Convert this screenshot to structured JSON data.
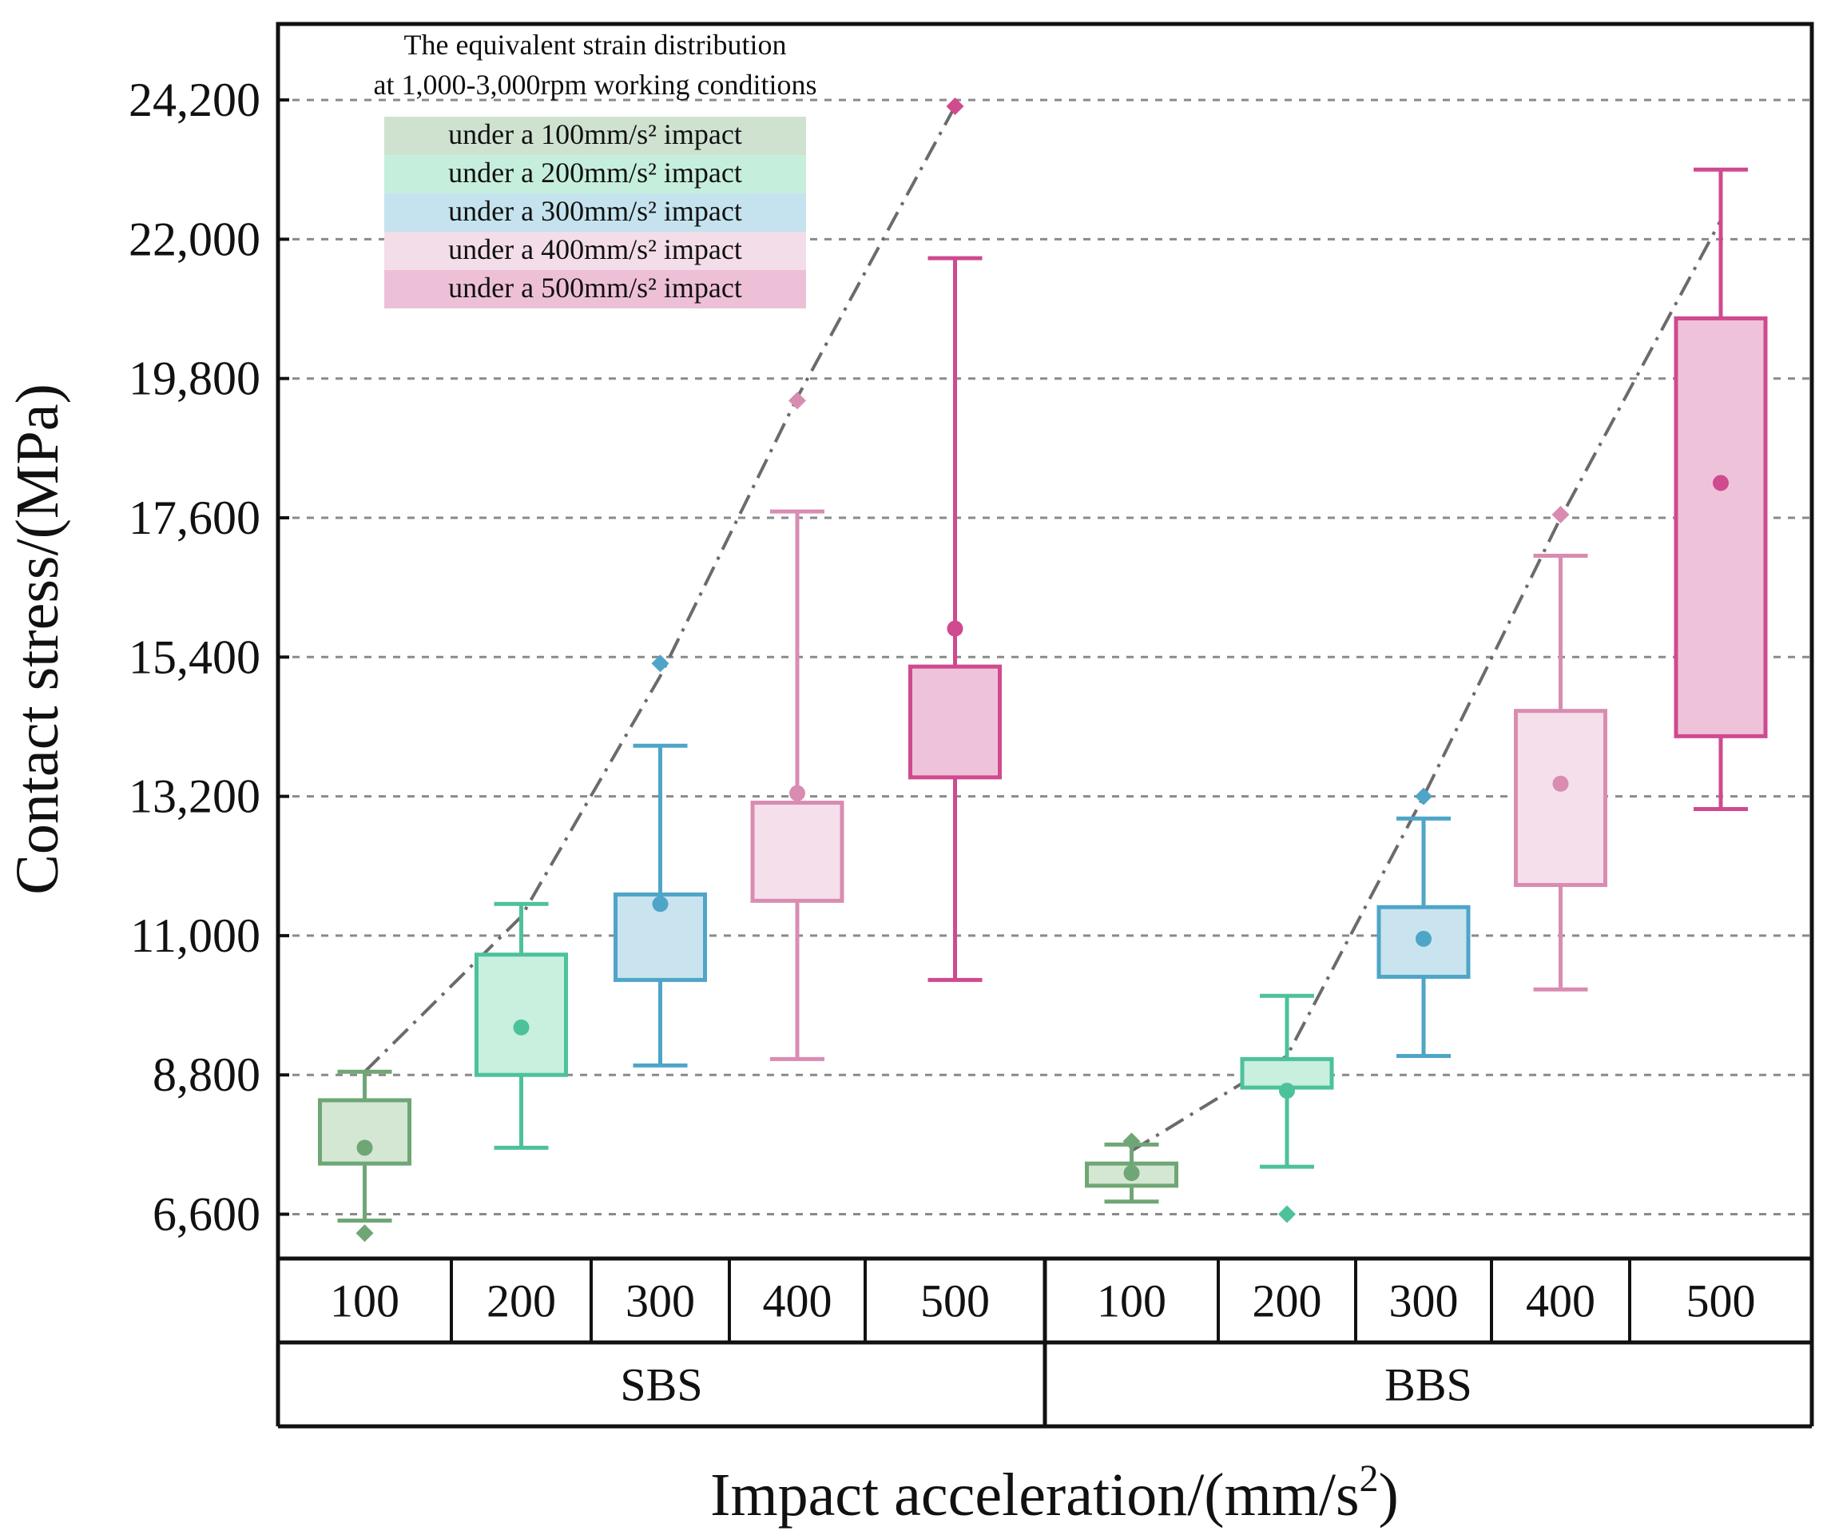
{
  "chart_data": {
    "type": "box",
    "ylabel": "Contact stress/(MPa)",
    "xlabel": "Impact acceleration/(mm/s",
    "xlabel_sup": "2",
    "xlabel_close": ")",
    "ylim": [
      5900,
      25400
    ],
    "yticks": [
      6600,
      8800,
      11000,
      13200,
      15400,
      17600,
      19800,
      22000,
      24200
    ],
    "ytick_labels": [
      "6,600",
      "8,800",
      "11,000",
      "13,200",
      "15,400",
      "17,600",
      "19,800",
      "22,000",
      "24,200"
    ],
    "grid": "horizontal dashed",
    "note_line1": "The equivalent strain distribution",
    "note_line2": "at 1,000-3,000rpm working conditions",
    "legend": [
      {
        "label": "under a 100mm/s² impact",
        "color": "#cfe2d0"
      },
      {
        "label": "under a 200mm/s² impact",
        "color": "#c6eedd"
      },
      {
        "label": "under a 300mm/s² impact",
        "color": "#c5e3ee"
      },
      {
        "label": "under a 400mm/s² impact",
        "color": "#f3dde8"
      },
      {
        "label": "under a 500mm/s² impact",
        "color": "#eec0d8"
      }
    ],
    "colors": {
      "100": {
        "stroke": "#6fa675",
        "fill": "#d3e7d3"
      },
      "200": {
        "stroke": "#4dc29a",
        "fill": "#c9efdf"
      },
      "300": {
        "stroke": "#4ea5c8",
        "fill": "#c9e4ee"
      },
      "400": {
        "stroke": "#d98cb2",
        "fill": "#f4dfea"
      },
      "500": {
        "stroke": "#cf4a8f",
        "fill": "#eec3d9"
      }
    },
    "groups": [
      {
        "name": "SBS",
        "categories": [
          "100",
          "200",
          "300",
          "400",
          "500"
        ],
        "boxes": [
          {
            "label": "100",
            "whisker_low": 6500,
            "q1": 7400,
            "mean": 7650,
            "q3": 8400,
            "whisker_high": 8850,
            "outlier": 6300
          },
          {
            "label": "200",
            "whisker_low": 7650,
            "q1": 8800,
            "mean": 9550,
            "q3": 10700,
            "whisker_high": 11500,
            "outlier": null
          },
          {
            "label": "300",
            "whisker_low": 8950,
            "q1": 10300,
            "mean": 11500,
            "q3": 11650,
            "whisker_high": 14000,
            "outlier": 15300
          },
          {
            "label": "400",
            "whisker_low": 9050,
            "q1": 11550,
            "mean": 13250,
            "q3": 13100,
            "whisker_high": 17700,
            "outlier": 19450
          },
          {
            "label": "500",
            "whisker_low": 10300,
            "q1": 13500,
            "mean": 15850,
            "q3": 15250,
            "whisker_high": 21700,
            "outlier": 24100
          }
        ]
      },
      {
        "name": "BBS",
        "categories": [
          "100",
          "200",
          "300",
          "400",
          "500"
        ],
        "boxes": [
          {
            "label": "100",
            "whisker_low": 6800,
            "q1": 7050,
            "mean": 7250,
            "q3": 7400,
            "whisker_high": 7700,
            "outlier": 7750
          },
          {
            "label": "200",
            "whisker_low": 7350,
            "q1": 8600,
            "mean": 8550,
            "q3": 9050,
            "whisker_high": 10050,
            "outlier": 6600
          },
          {
            "label": "300",
            "whisker_low": 9100,
            "q1": 10350,
            "mean": 10950,
            "q3": 11450,
            "whisker_high": 12850,
            "outlier": 13200
          },
          {
            "label": "400",
            "whisker_low": 10150,
            "q1": 11800,
            "mean": 13400,
            "q3": 14550,
            "whisker_high": 17000,
            "outlier": 17650
          },
          {
            "label": "500",
            "whisker_low": 13000,
            "q1": 14150,
            "mean": 18150,
            "q3": 20750,
            "whisker_high": 23100,
            "outlier": null
          }
        ]
      }
    ],
    "trend_lines": [
      {
        "group": "SBS",
        "points": [
          {
            "cat": "100",
            "y": 8850
          },
          {
            "cat": "200",
            "y": 11300
          },
          {
            "cat": "300",
            "y": 15100
          },
          {
            "cat": "400",
            "y": 19500
          },
          {
            "cat": "500",
            "y": 24100
          }
        ]
      },
      {
        "group": "BBS",
        "points": [
          {
            "cat": "100",
            "y": 7600
          },
          {
            "cat": "200",
            "y": 9100
          },
          {
            "cat": "300",
            "y": 13200
          },
          {
            "cat": "400",
            "y": 17600
          },
          {
            "cat": "500",
            "y": 22300
          }
        ]
      }
    ]
  }
}
